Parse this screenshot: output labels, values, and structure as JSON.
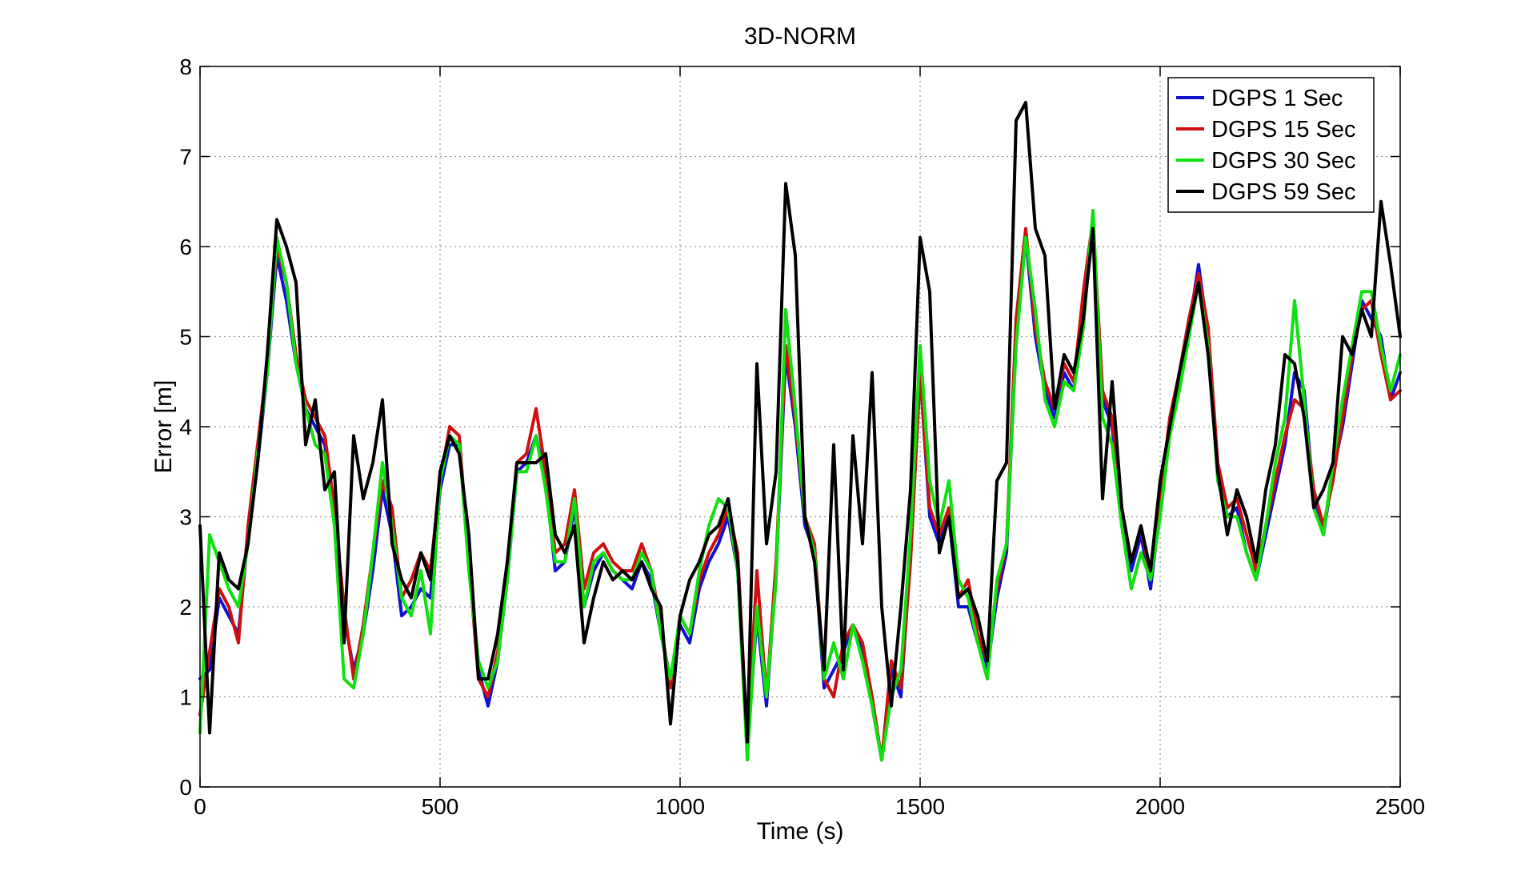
{
  "chart_data": {
    "type": "line",
    "title": "3D-NORM",
    "xlabel": "Time (s)",
    "ylabel": "Error [m]",
    "xlim": [
      0,
      2500
    ],
    "ylim": [
      0,
      8
    ],
    "xticks": [
      0,
      500,
      1000,
      1500,
      2000,
      2500
    ],
    "yticks": [
      0,
      1,
      2,
      3,
      4,
      5,
      6,
      7,
      8
    ],
    "grid": true,
    "legend_position": "top-right",
    "x": [
      0,
      20,
      40,
      60,
      80,
      100,
      120,
      140,
      160,
      180,
      200,
      220,
      240,
      260,
      280,
      300,
      320,
      340,
      360,
      380,
      400,
      420,
      440,
      460,
      480,
      500,
      520,
      540,
      560,
      580,
      600,
      620,
      640,
      660,
      680,
      700,
      720,
      740,
      760,
      780,
      800,
      820,
      840,
      860,
      880,
      900,
      920,
      940,
      960,
      980,
      1000,
      1020,
      1040,
      1060,
      1080,
      1100,
      1120,
      1140,
      1160,
      1180,
      1200,
      1220,
      1240,
      1260,
      1280,
      1300,
      1320,
      1340,
      1360,
      1380,
      1400,
      1420,
      1440,
      1460,
      1480,
      1500,
      1520,
      1540,
      1560,
      1580,
      1600,
      1620,
      1640,
      1660,
      1680,
      1700,
      1720,
      1740,
      1760,
      1780,
      1800,
      1820,
      1840,
      1860,
      1880,
      1900,
      1920,
      1940,
      1960,
      1980,
      2000,
      2020,
      2040,
      2060,
      2080,
      2100,
      2120,
      2140,
      2160,
      2180,
      2200,
      2220,
      2240,
      2260,
      2280,
      2300,
      2320,
      2340,
      2360,
      2380,
      2400,
      2420,
      2440,
      2460,
      2480,
      2500
    ],
    "series": [
      {
        "name": "DGPS 1 Sec",
        "color": "#1010d0",
        "values": [
          1.2,
          1.3,
          2.1,
          1.9,
          1.7,
          2.8,
          3.6,
          4.6,
          5.9,
          5.4,
          4.7,
          4.2,
          4.0,
          3.8,
          3.0,
          1.9,
          1.3,
          1.7,
          2.4,
          3.3,
          2.8,
          1.9,
          2.0,
          2.2,
          2.1,
          3.3,
          3.8,
          3.8,
          2.6,
          1.3,
          0.9,
          1.4,
          2.3,
          3.5,
          3.6,
          3.9,
          3.4,
          2.4,
          2.5,
          3.1,
          2.0,
          2.4,
          2.6,
          2.4,
          2.3,
          2.2,
          2.5,
          2.3,
          1.7,
          1.2,
          1.8,
          1.6,
          2.2,
          2.5,
          2.7,
          3.0,
          2.4,
          0.4,
          1.9,
          0.9,
          2.4,
          4.8,
          4.0,
          2.9,
          2.6,
          1.1,
          1.3,
          1.5,
          1.8,
          1.5,
          0.9,
          0.3,
          1.3,
          1.0,
          2.6,
          4.6,
          3.0,
          2.7,
          3.0,
          2.0,
          2.0,
          1.6,
          1.3,
          2.1,
          2.6,
          5.0,
          6.1,
          5.0,
          4.4,
          4.1,
          4.6,
          4.4,
          5.4,
          6.2,
          4.3,
          4.0,
          3.0,
          2.4,
          2.8,
          2.2,
          3.1,
          4.0,
          4.5,
          5.1,
          5.8,
          5.0,
          3.5,
          3.0,
          3.1,
          2.6,
          2.3,
          2.8,
          3.3,
          3.8,
          4.6,
          4.4,
          3.2,
          2.8,
          3.5,
          4.0,
          4.7,
          5.4,
          5.2,
          5.0,
          4.3,
          4.6
        ]
      },
      {
        "name": "DGPS 15 Sec",
        "color": "#d01010",
        "values": [
          0.8,
          1.5,
          2.2,
          2.0,
          1.6,
          2.9,
          3.8,
          4.7,
          6.0,
          5.6,
          4.8,
          4.3,
          4.1,
          3.9,
          3.1,
          2.0,
          1.2,
          1.8,
          2.6,
          3.4,
          3.1,
          2.1,
          2.3,
          2.6,
          2.4,
          3.4,
          4.0,
          3.9,
          2.5,
          1.2,
          1.0,
          1.5,
          2.4,
          3.6,
          3.7,
          4.2,
          3.5,
          2.6,
          2.7,
          3.3,
          2.2,
          2.6,
          2.7,
          2.5,
          2.4,
          2.4,
          2.7,
          2.4,
          1.8,
          1.1,
          1.9,
          1.7,
          2.3,
          2.6,
          2.8,
          3.1,
          2.6,
          0.5,
          2.4,
          1.0,
          2.5,
          4.9,
          4.1,
          3.0,
          2.7,
          1.2,
          1.0,
          1.6,
          1.8,
          1.6,
          1.0,
          0.3,
          1.4,
          1.1,
          2.5,
          4.6,
          3.1,
          2.8,
          3.1,
          2.1,
          2.3,
          1.7,
          1.4,
          2.2,
          2.7,
          5.2,
          6.2,
          5.1,
          4.5,
          4.2,
          4.7,
          4.5,
          5.5,
          6.3,
          4.4,
          4.1,
          3.1,
          2.5,
          2.9,
          2.3,
          3.2,
          4.1,
          4.6,
          5.2,
          5.7,
          5.1,
          3.6,
          3.1,
          3.2,
          2.8,
          2.4,
          2.9,
          3.4,
          3.9,
          4.3,
          4.2,
          3.3,
          2.9,
          3.4,
          4.1,
          4.8,
          5.3,
          5.4,
          4.8,
          4.3,
          4.4
        ]
      },
      {
        "name": "DGPS 30 Sec",
        "color": "#10e010",
        "values": [
          0.6,
          2.8,
          2.5,
          2.2,
          2.0,
          2.7,
          3.7,
          4.6,
          6.1,
          5.6,
          4.7,
          4.2,
          3.8,
          3.7,
          2.9,
          1.2,
          1.1,
          1.7,
          2.6,
          3.6,
          2.9,
          2.1,
          1.9,
          2.4,
          1.7,
          3.4,
          3.9,
          3.8,
          2.4,
          1.4,
          1.1,
          1.4,
          2.3,
          3.5,
          3.5,
          3.9,
          3.3,
          2.5,
          2.5,
          3.2,
          2.0,
          2.5,
          2.6,
          2.4,
          2.3,
          2.3,
          2.6,
          2.4,
          1.7,
          1.2,
          1.9,
          1.7,
          2.4,
          2.9,
          3.2,
          3.1,
          2.4,
          0.3,
          2.0,
          1.0,
          2.3,
          5.3,
          4.2,
          3.0,
          2.6,
          1.2,
          1.6,
          1.2,
          1.8,
          1.4,
          0.9,
          0.3,
          1.0,
          1.3,
          2.8,
          4.9,
          3.4,
          2.9,
          3.4,
          2.3,
          2.1,
          1.6,
          1.2,
          2.3,
          2.7,
          4.9,
          6.1,
          5.3,
          4.3,
          4.0,
          4.5,
          4.4,
          5.1,
          6.4,
          4.1,
          3.8,
          2.9,
          2.2,
          2.6,
          2.3,
          3.0,
          3.9,
          4.4,
          5.0,
          5.6,
          4.9,
          3.4,
          3.0,
          3.0,
          2.6,
          2.3,
          2.9,
          3.6,
          4.1,
          5.4,
          4.3,
          3.1,
          2.8,
          3.6,
          4.3,
          4.9,
          5.5,
          5.5,
          4.9,
          4.4,
          4.8
        ]
      },
      {
        "name": "DGPS 59 Sec",
        "color": "#000000",
        "values": [
          2.9,
          0.6,
          2.6,
          2.3,
          2.2,
          2.7,
          3.6,
          4.8,
          6.3,
          6.0,
          5.6,
          3.8,
          4.3,
          3.3,
          3.5,
          1.6,
          3.9,
          3.2,
          3.6,
          4.3,
          2.7,
          2.3,
          2.1,
          2.6,
          2.3,
          3.5,
          3.9,
          3.7,
          2.8,
          1.2,
          1.2,
          1.7,
          2.5,
          3.6,
          3.6,
          3.6,
          3.7,
          2.8,
          2.6,
          2.9,
          1.6,
          2.1,
          2.5,
          2.3,
          2.4,
          2.3,
          2.5,
          2.2,
          2.0,
          0.7,
          1.9,
          2.3,
          2.5,
          2.8,
          2.9,
          3.2,
          2.5,
          0.5,
          4.7,
          2.7,
          3.5,
          6.7,
          5.9,
          3.0,
          2.5,
          1.3,
          3.8,
          1.3,
          3.9,
          2.7,
          4.6,
          2.0,
          0.9,
          2.0,
          3.3,
          6.1,
          5.5,
          2.6,
          3.0,
          2.1,
          2.2,
          1.9,
          1.4,
          3.4,
          3.6,
          7.4,
          7.6,
          6.2,
          5.9,
          4.2,
          4.8,
          4.6,
          5.2,
          6.2,
          3.2,
          4.5,
          3.1,
          2.5,
          2.9,
          2.4,
          3.4,
          4.0,
          4.6,
          5.1,
          5.6,
          4.8,
          3.5,
          2.8,
          3.3,
          3.0,
          2.5,
          3.3,
          3.8,
          4.8,
          4.7,
          4.1,
          3.1,
          3.3,
          3.6,
          5.0,
          4.8,
          5.3,
          5.0,
          6.5,
          5.8,
          5.0
        ]
      }
    ]
  }
}
